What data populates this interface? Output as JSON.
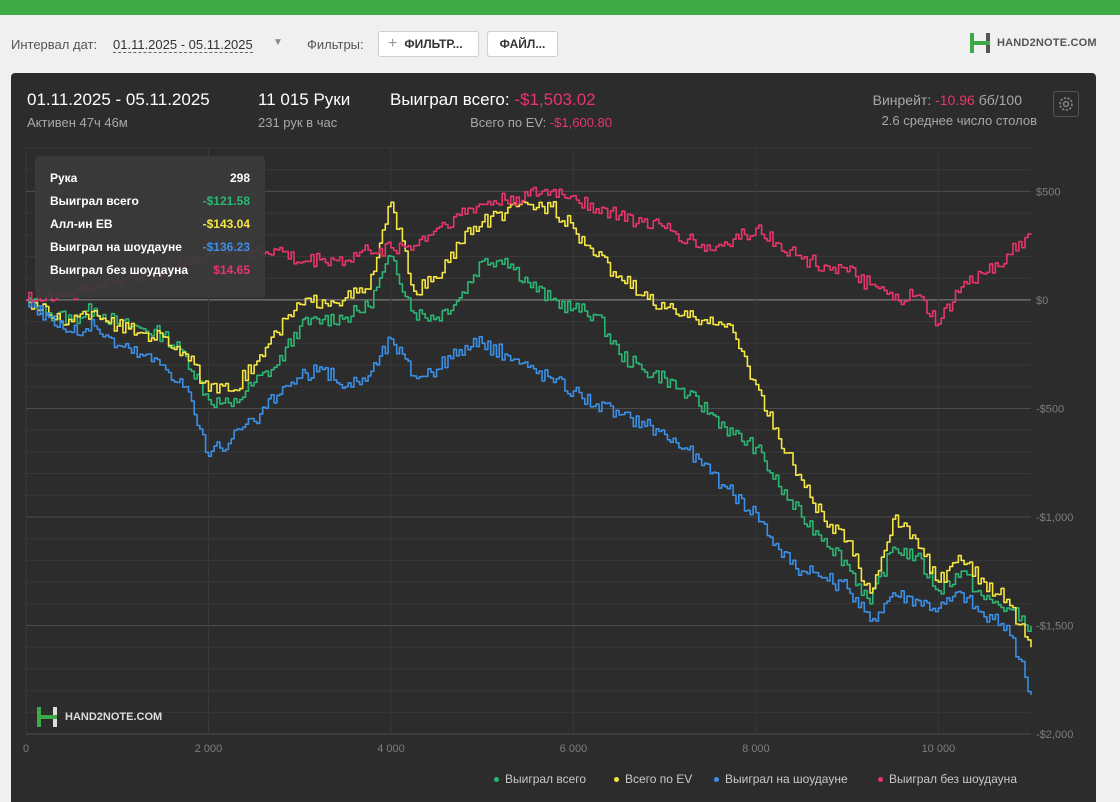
{
  "filters": {
    "interval_label": "Интервал дат:",
    "date_range": "01.11.2025 - 05.11.2025",
    "filters_label": "Фильтры:",
    "filter_button": "ФИЛЬТР...",
    "file_button": "ФАЙЛ...",
    "brand": "HAND2NOTE.COM"
  },
  "header": {
    "dates": "01.11.2025 - 05.11.2025",
    "active": "Активен 47ч 46м",
    "hands": "11 015 Руки",
    "hands_per_hour": "231 рук в час",
    "won_label": "Выиграл всего:",
    "won_value": "-$1,503.02",
    "ev_label": "Всего по EV:",
    "ev_value": "-$1,600.80",
    "winrate_label": "Винрейт:",
    "winrate_value": "-10.96",
    "winrate_unit": "бб/100",
    "avg_tables": "2.6 среднее число столов"
  },
  "tooltip": {
    "rows": [
      {
        "label": "Рука",
        "value": "298",
        "color": "#ffffff"
      },
      {
        "label": "Выиграл всего",
        "value": "-$121.58",
        "color": "#2bb673"
      },
      {
        "label": "Алл-ин EB",
        "value": "-$143.04",
        "color": "#f5e642"
      },
      {
        "label": "Выиграл на шоудауне",
        "value": "-$136.23",
        "color": "#3a8fe6"
      },
      {
        "label": "Выиграл без шоудауна",
        "value": "$14.65",
        "color": "#e8356b"
      }
    ]
  },
  "watermark": "HAND2NOTE.COM",
  "chart_data": {
    "type": "line",
    "xlim": [
      0,
      11015
    ],
    "ylim": [
      -2000,
      700
    ],
    "x_ticks": [
      0,
      2000,
      4000,
      6000,
      8000,
      10000
    ],
    "x_tick_labels": [
      "0",
      "2 000",
      "4 000",
      "6 000",
      "8 000",
      "10 000"
    ],
    "y_ticks": [
      500,
      0,
      -500,
      -1000,
      -1500,
      -2000
    ],
    "y_tick_labels": [
      "$500",
      "$0",
      "-$500",
      "-$1,000",
      "-$1,500",
      "-$2,000"
    ],
    "grid": true,
    "legend_position": "bottom-right",
    "x": [
      0,
      250,
      500,
      750,
      1000,
      1250,
      1500,
      1750,
      2000,
      2250,
      2500,
      2750,
      3000,
      3250,
      3500,
      3750,
      4000,
      4250,
      4500,
      4750,
      5000,
      5250,
      5500,
      5750,
      6000,
      6250,
      6500,
      6750,
      7000,
      7250,
      7500,
      7750,
      8000,
      8250,
      8500,
      8750,
      9000,
      9250,
      9500,
      9750,
      10000,
      10250,
      10500,
      10750,
      11015
    ],
    "series": [
      {
        "name": "Выиграл всего",
        "color": "#2bb673",
        "values": [
          0,
          -60,
          -90,
          -40,
          -110,
          -130,
          -160,
          -260,
          -460,
          -490,
          -380,
          -300,
          -120,
          -90,
          -80,
          -30,
          200,
          -60,
          -80,
          10,
          180,
          190,
          80,
          0,
          -40,
          -70,
          -250,
          -320,
          -360,
          -440,
          -520,
          -620,
          -680,
          -860,
          -1000,
          -1100,
          -1220,
          -1400,
          -1140,
          -1180,
          -1340,
          -1250,
          -1380,
          -1420,
          -1503
        ]
      },
      {
        "name": "Всего по EV",
        "color": "#f5e642",
        "values": [
          0,
          -70,
          -100,
          -50,
          -120,
          -150,
          -170,
          -250,
          -420,
          -420,
          -300,
          -150,
          -20,
          0,
          10,
          50,
          450,
          40,
          100,
          260,
          360,
          400,
          440,
          430,
          330,
          200,
          110,
          20,
          -40,
          -80,
          -80,
          -150,
          -390,
          -640,
          -830,
          -1020,
          -1110,
          -1350,
          -1010,
          -1100,
          -1300,
          -1200,
          -1300,
          -1380,
          -1600
        ]
      },
      {
        "name": "Выиграл на шоудауне",
        "color": "#3a8fe6",
        "values": [
          0,
          -80,
          -150,
          -120,
          -210,
          -250,
          -300,
          -400,
          -720,
          -640,
          -560,
          -440,
          -360,
          -320,
          -400,
          -350,
          -180,
          -350,
          -320,
          -230,
          -200,
          -250,
          -310,
          -360,
          -420,
          -480,
          -530,
          -560,
          -620,
          -690,
          -800,
          -900,
          -980,
          -1150,
          -1250,
          -1280,
          -1330,
          -1480,
          -1350,
          -1380,
          -1420,
          -1350,
          -1460,
          -1500,
          -1820
        ]
      },
      {
        "name": "Выиграл без шоудауна",
        "color": "#e8356b",
        "values": [
          0,
          30,
          30,
          60,
          90,
          120,
          130,
          190,
          210,
          250,
          220,
          230,
          170,
          190,
          180,
          230,
          240,
          250,
          330,
          390,
          440,
          460,
          480,
          500,
          480,
          420,
          390,
          360,
          330,
          280,
          230,
          280,
          330,
          260,
          190,
          160,
          130,
          70,
          0,
          20,
          -110,
          60,
          120,
          210,
          300
        ]
      }
    ]
  }
}
